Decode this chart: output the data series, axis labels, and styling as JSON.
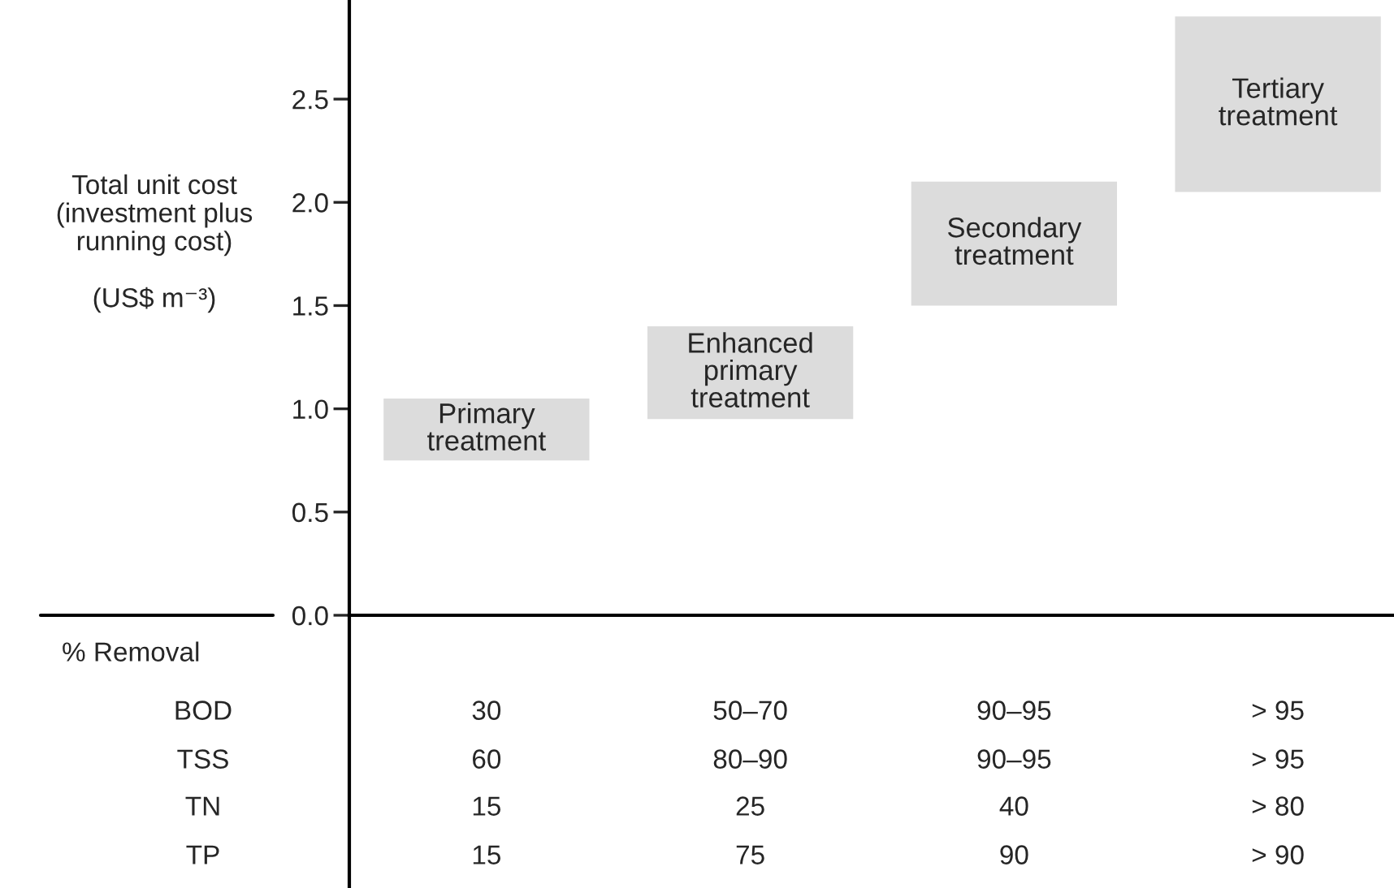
{
  "chart_data": {
    "type": "bar",
    "ylabel": "Total unit cost\n(investment plus\nrunning cost)\n\n(US$ m⁻³)",
    "categories": [
      "Primary\ntreatment",
      "Enhanced\nprimary\ntreatment",
      "Secondary\ntreatment",
      "Tertiary\ntreatment"
    ],
    "base": [
      0.75,
      0.95,
      1.5,
      2.05
    ],
    "values": [
      0.3,
      0.45,
      0.6,
      0.85
    ],
    "color": "#dcdcdc",
    "ylim": [
      0,
      2.98
    ],
    "yticks": [
      {
        "value": 0,
        "label": "0.0"
      },
      {
        "value": 0.5,
        "label": "0.5"
      },
      {
        "value": 1,
        "label": "1.0"
      },
      {
        "value": 1.5,
        "label": "1.5"
      },
      {
        "value": 2,
        "label": "2.0"
      },
      {
        "value": 2.5,
        "label": "2.5"
      }
    ],
    "tick_labels": "y",
    "grid": false,
    "legend": false,
    "annotations": [
      "% Removal",
      "BOD",
      "30",
      "50–70",
      "90–95",
      "> 95",
      "TSS",
      "60",
      "80–90",
      "90–95",
      "> 95",
      "TN",
      "15",
      "25",
      "40",
      "> 80",
      "TP",
      "15",
      "75",
      "90",
      "> 90"
    ]
  }
}
